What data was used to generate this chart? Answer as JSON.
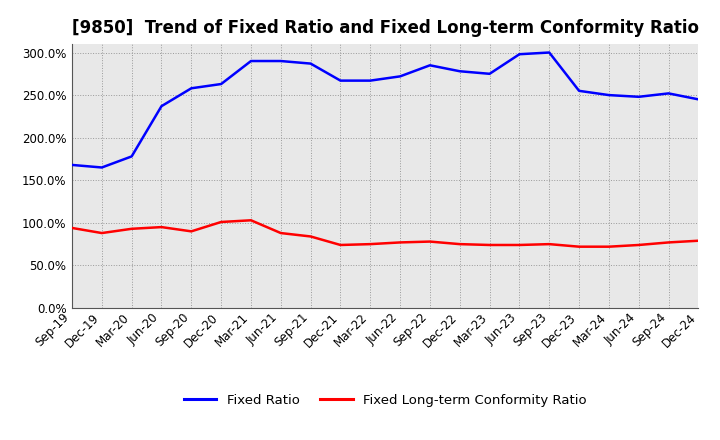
{
  "title": "[9850]  Trend of Fixed Ratio and Fixed Long-term Conformity Ratio",
  "x_labels": [
    "Sep-19",
    "Dec-19",
    "Mar-20",
    "Jun-20",
    "Sep-20",
    "Dec-20",
    "Mar-21",
    "Jun-21",
    "Sep-21",
    "Dec-21",
    "Mar-22",
    "Jun-22",
    "Sep-22",
    "Dec-22",
    "Mar-23",
    "Jun-23",
    "Sep-23",
    "Dec-23",
    "Mar-24",
    "Jun-24",
    "Sep-24",
    "Dec-24"
  ],
  "fixed_ratio": [
    168.0,
    165.0,
    178.0,
    237.0,
    258.0,
    263.0,
    290.0,
    290.0,
    287.0,
    267.0,
    267.0,
    272.0,
    285.0,
    278.0,
    275.0,
    298.0,
    300.0,
    255.0,
    250.0,
    248.0,
    252.0,
    245.0
  ],
  "fixed_lt_ratio": [
    94.0,
    88.0,
    93.0,
    95.0,
    90.0,
    101.0,
    103.0,
    88.0,
    84.0,
    74.0,
    75.0,
    77.0,
    78.0,
    75.0,
    74.0,
    74.0,
    75.0,
    72.0,
    72.0,
    74.0,
    77.0,
    79.0
  ],
  "fixed_ratio_color": "#0000FF",
  "fixed_lt_ratio_color": "#FF0000",
  "ylim": [
    0,
    310
  ],
  "yticks": [
    0.0,
    50.0,
    100.0,
    150.0,
    200.0,
    250.0,
    300.0
  ],
  "background_color": "#FFFFFF",
  "plot_bg_color": "#E8E8E8",
  "grid_color": "#999999",
  "legend_labels": [
    "Fixed Ratio",
    "Fixed Long-term Conformity Ratio"
  ],
  "title_fontsize": 12,
  "tick_fontsize": 8.5,
  "legend_fontsize": 9.5,
  "line_width": 1.8
}
